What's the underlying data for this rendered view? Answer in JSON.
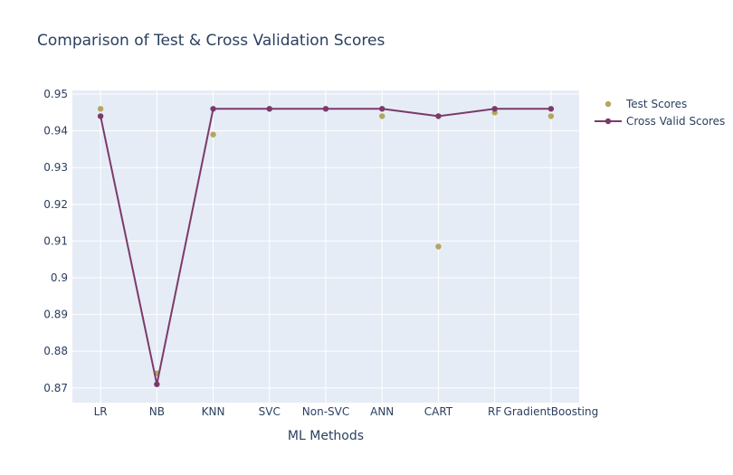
{
  "chart_data": {
    "type": "scatter",
    "title": "Comparison of Test & Cross Validation Scores",
    "xlabel": "ML Methods",
    "ylabel": "",
    "categories": [
      "LR",
      "NB",
      "KNN",
      "SVC",
      "Non-SVC",
      "ANN",
      "CART",
      "RF",
      "GradientBoosting"
    ],
    "ylim": [
      0.866,
      0.951
    ],
    "yticks": [
      0.87,
      0.88,
      0.89,
      0.9,
      0.91,
      0.92,
      0.93,
      0.94,
      0.95
    ],
    "ytick_labels": [
      "0.87",
      "0.88",
      "0.89",
      "0.9",
      "0.91",
      "0.92",
      "0.93",
      "0.94",
      "0.95"
    ],
    "grid": true,
    "legend_position": "top-right",
    "series": [
      {
        "name": "Test Scores",
        "mode": "markers",
        "color": "#b5a55f",
        "values": [
          0.946,
          0.874,
          0.939,
          0.946,
          0.946,
          0.944,
          0.9085,
          0.945,
          0.944
        ]
      },
      {
        "name": "Cross Valid Scores",
        "mode": "lines+markers",
        "color": "#7b3a6a",
        "values": [
          0.944,
          0.871,
          0.946,
          0.946,
          0.946,
          0.946,
          0.944,
          0.946,
          0.946
        ]
      }
    ],
    "plot_bg": "#e5ecf6",
    "grid_color": "#ffffff",
    "text_color": "#2a3f5f"
  }
}
